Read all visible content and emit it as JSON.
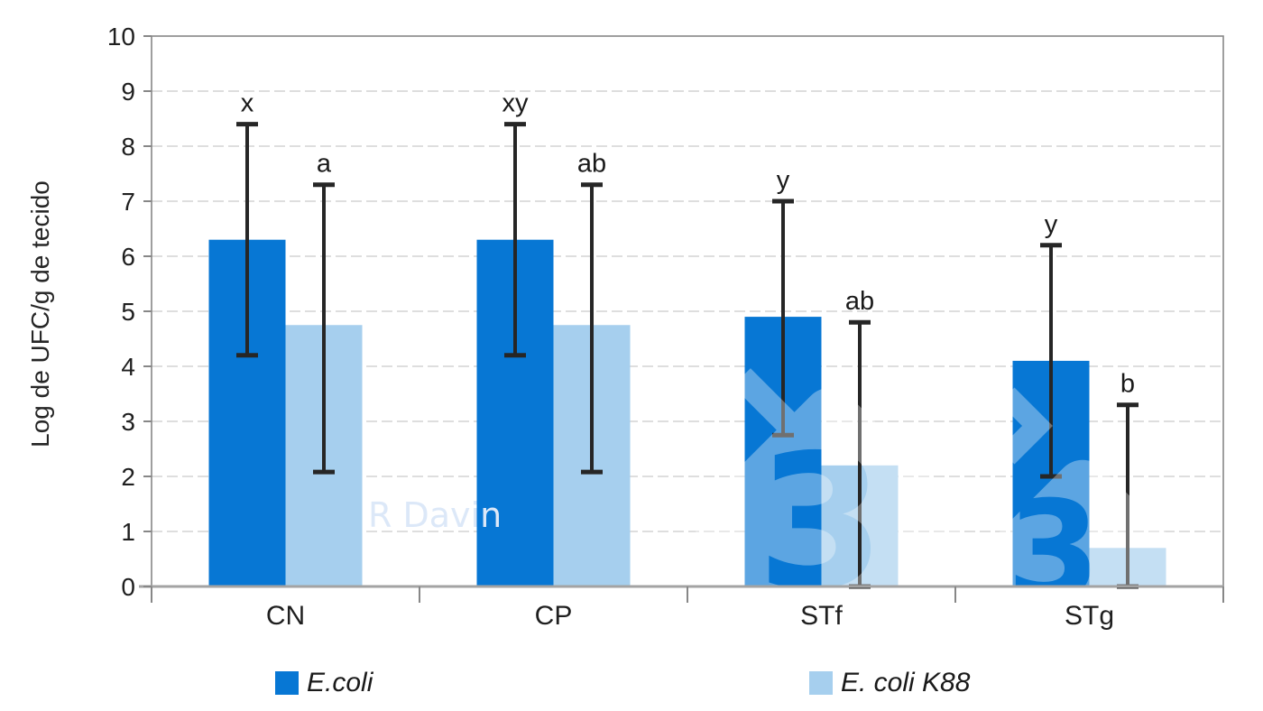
{
  "figure": {
    "background": "#ffffff",
    "watermarks": {
      "author_text": "R Davin",
      "logo_glyph": "3"
    }
  },
  "chart_data": {
    "type": "bar",
    "title": "",
    "xlabel": "",
    "ylabel": "Log de UFC/g de tecido",
    "ylim": [
      0,
      10
    ],
    "yticks": [
      0,
      1,
      2,
      3,
      4,
      5,
      6,
      7,
      8,
      9,
      10
    ],
    "grid": "horizontal dashed gridlines at integers 1-9, plot area framed",
    "legend_position": "bottom",
    "categories": [
      "CN",
      "CP",
      "STf",
      "STg"
    ],
    "series": [
      {
        "name": "E.coli",
        "color": "#0777d4",
        "values": [
          6.3,
          6.3,
          4.9,
          4.1
        ],
        "error_low": [
          4.2,
          4.2,
          2.75,
          2.0
        ],
        "error_high": [
          8.4,
          8.4,
          7.0,
          6.2
        ],
        "sig_letters": [
          "x",
          "xy",
          "y",
          "y"
        ]
      },
      {
        "name": "E. coli K88",
        "color": "#a6cfee",
        "values": [
          4.75,
          4.75,
          2.2,
          0.7
        ],
        "error_low": [
          2.08,
          2.08,
          0,
          0
        ],
        "error_high": [
          7.3,
          7.3,
          4.8,
          3.3
        ],
        "sig_letters": [
          "a",
          "ab",
          "ab",
          "b"
        ]
      }
    ]
  },
  "colors": {
    "plot_border": "#878787",
    "axis_line": "#a3a3a3",
    "gridline": "#c9c9c9",
    "error_bar": "#262626",
    "sig_letter": "#1a1a1a",
    "tick_label": "#1f1f1f",
    "watermark_text": "#dce8f8"
  }
}
